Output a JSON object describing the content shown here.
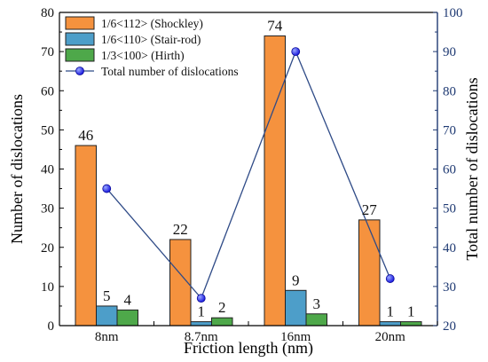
{
  "chart_data": {
    "type": "bar",
    "categories": [
      "8nm",
      "8.7nm",
      "16nm",
      "20nm"
    ],
    "series": [
      {
        "name": "1/6<112> (Shockley)",
        "values": [
          46,
          22,
          74,
          27
        ],
        "color": "#f5923e",
        "axis": "left"
      },
      {
        "name": "1/6<110> (Stair-rod)",
        "values": [
          5,
          1,
          9,
          1
        ],
        "color": "#4d9ec9",
        "axis": "left"
      },
      {
        "name": "1/3<100> (Hirth)",
        "values": [
          4,
          2,
          3,
          1
        ],
        "color": "#4ea84a",
        "axis": "left"
      }
    ],
    "line_series": {
      "name": "Total number of dislocations",
      "type": "line",
      "values": [
        55,
        27,
        90,
        32
      ],
      "axis": "right",
      "line_color": "#2f4b87",
      "marker_color": "#1a1adf"
    },
    "xlabel": "Friction length (nm)",
    "ylabel": "Number of dislocations",
    "ylabel_right": "Total number of dislocations",
    "ylim": [
      0,
      80
    ],
    "ylim_right": [
      20,
      100
    ],
    "yticks": [
      0,
      10,
      20,
      30,
      40,
      50,
      60,
      70,
      80
    ],
    "yticks_right": [
      20,
      30,
      40,
      50,
      60,
      70,
      80,
      90,
      100
    ],
    "grid": false,
    "legend_position": "top-left",
    "axis_color_right": "#1f3a73"
  }
}
